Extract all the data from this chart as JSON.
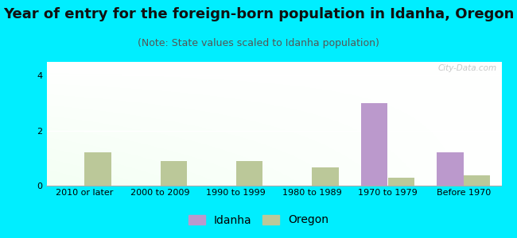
{
  "title": "Year of entry for the foreign-born population in Idanha, Oregon",
  "subtitle": "(Note: State values scaled to Idanha population)",
  "categories": [
    "2010 or later",
    "2000 to 2009",
    "1990 to 1999",
    "1980 to 1989",
    "1970 to 1979",
    "Before 1970"
  ],
  "idanha_values": [
    0,
    0,
    0,
    0,
    3.0,
    1.2
  ],
  "oregon_values": [
    1.2,
    0.9,
    0.9,
    0.65,
    0.28,
    0.38
  ],
  "idanha_color": "#bb99cc",
  "oregon_color": "#bbc899",
  "background_color": "#00eeff",
  "ylim": [
    0,
    4.5
  ],
  "yticks": [
    0,
    2,
    4
  ],
  "bar_width": 0.35,
  "title_fontsize": 13,
  "subtitle_fontsize": 9,
  "tick_fontsize": 8,
  "legend_fontsize": 10,
  "watermark": "City-Data.com"
}
